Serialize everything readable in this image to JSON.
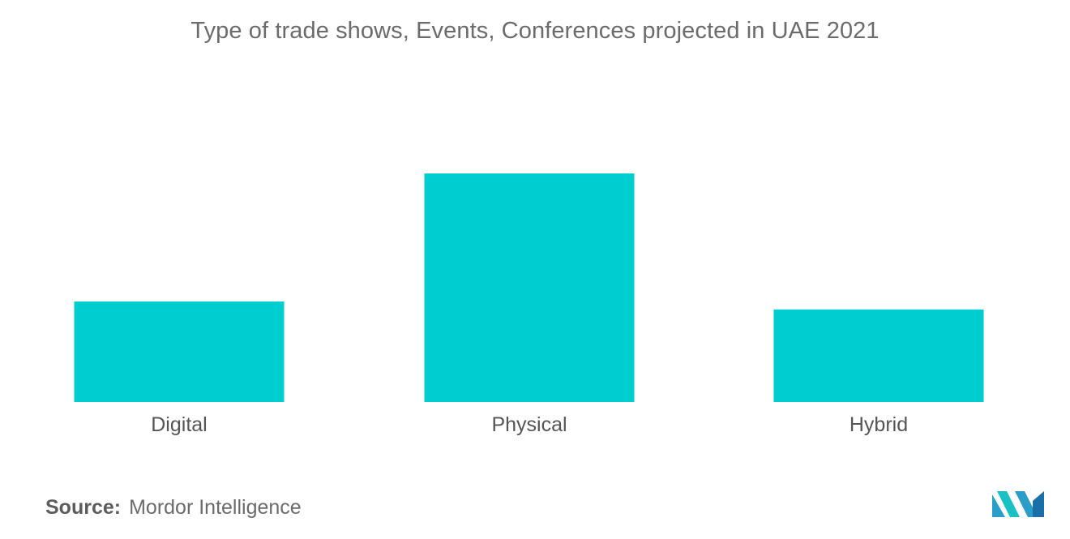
{
  "chart_data": {
    "type": "bar",
    "title": "Type of trade shows, Events, Conferences projected in UAE 2021",
    "categories": [
      "Digital",
      "Physical",
      "Hybrid"
    ],
    "values": [
      44,
      100,
      40.5
    ],
    "xlabel": "",
    "ylabel": "",
    "ylim": [
      0,
      100
    ],
    "grid": false,
    "bar_color": "#00cdd0"
  },
  "source": {
    "label": "Source:",
    "value": "Mordor Intelligence"
  },
  "logo": {
    "icon": "mordor-intelligence-logo-icon",
    "colors": [
      "#2a9ec8",
      "#19c1c4",
      "#1b6fa8"
    ]
  }
}
